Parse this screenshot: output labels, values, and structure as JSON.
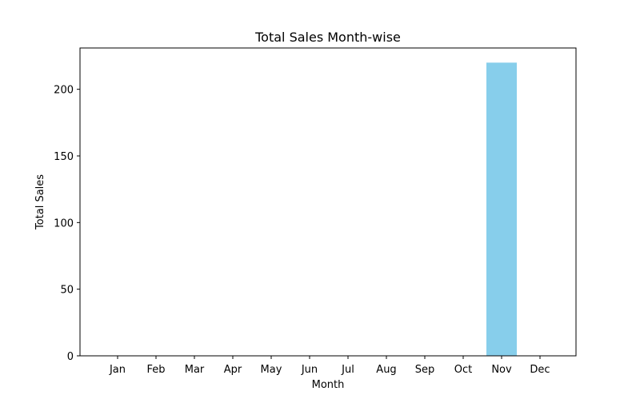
{
  "chart_data": {
    "type": "bar",
    "title": "Total Sales Month-wise",
    "xlabel": "Month",
    "ylabel": "Total Sales",
    "categories": [
      "Jan",
      "Feb",
      "Mar",
      "Apr",
      "May",
      "Jun",
      "Jul",
      "Aug",
      "Sep",
      "Oct",
      "Nov",
      "Dec"
    ],
    "values": [
      0,
      0,
      0,
      0,
      0,
      0,
      0,
      0,
      0,
      0,
      220,
      0
    ],
    "ylim": [
      0,
      231
    ],
    "yticks": [
      0,
      50,
      100,
      150,
      200
    ],
    "bar_color": "#87CEEB",
    "grid": false,
    "legend": "none"
  }
}
